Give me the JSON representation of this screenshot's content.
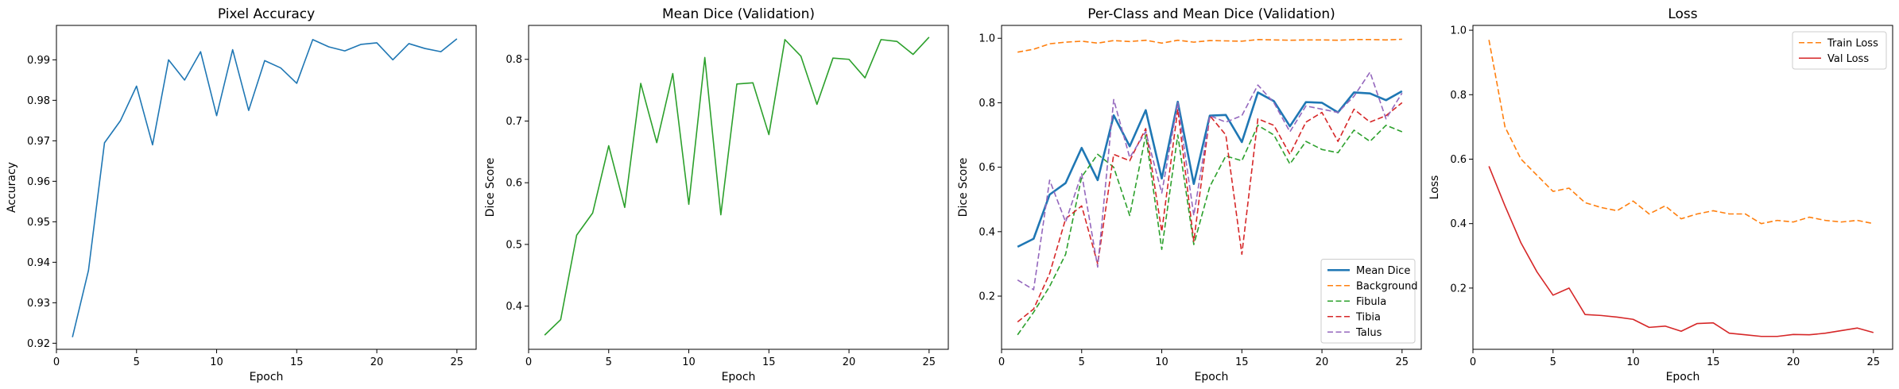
{
  "chart_data": [
    {
      "type": "line",
      "title": "Pixel Accuracy",
      "xlabel": "Epoch",
      "ylabel": "Accuracy",
      "xlim": [
        0,
        26.2
      ],
      "ylim": [
        0.9185,
        0.9985
      ],
      "xticks": [
        0,
        5,
        10,
        15,
        20,
        25
      ],
      "yticks": [
        0.92,
        0.93,
        0.94,
        0.95,
        0.96,
        0.97,
        0.98,
        0.99
      ],
      "ytick_decimals": 2,
      "x": [
        1,
        2,
        3,
        4,
        5,
        6,
        7,
        8,
        9,
        10,
        11,
        12,
        13,
        14,
        15,
        16,
        17,
        18,
        19,
        20,
        21,
        22,
        23,
        24,
        25
      ],
      "series": [
        {
          "color": "#1f77b4",
          "dash": "solid",
          "values": [
            0.9215,
            0.938,
            0.9695,
            0.975,
            0.9835,
            0.969,
            0.99,
            0.985,
            0.992,
            0.9762,
            0.9925,
            0.9775,
            0.9898,
            0.988,
            0.9842,
            0.995,
            0.9932,
            0.9922,
            0.9938,
            0.9942,
            0.99,
            0.994,
            0.9928,
            0.992,
            0.9952
          ]
        }
      ],
      "legend": null
    },
    {
      "type": "line",
      "title": "Mean Dice (Validation)",
      "xlabel": "Epoch",
      "ylabel": "Dice Score",
      "xlim": [
        0,
        26.2
      ],
      "ylim": [
        0.33,
        0.855
      ],
      "xticks": [
        0,
        5,
        10,
        15,
        20,
        25
      ],
      "yticks": [
        0.4,
        0.5,
        0.6,
        0.7,
        0.8
      ],
      "ytick_decimals": 1,
      "x": [
        1,
        2,
        3,
        4,
        5,
        6,
        7,
        8,
        9,
        10,
        11,
        12,
        13,
        14,
        15,
        16,
        17,
        18,
        19,
        20,
        21,
        22,
        23,
        24,
        25
      ],
      "series": [
        {
          "color": "#2ca02c",
          "dash": "solid",
          "values": [
            0.353,
            0.378,
            0.515,
            0.551,
            0.66,
            0.56,
            0.761,
            0.665,
            0.777,
            0.565,
            0.803,
            0.548,
            0.76,
            0.762,
            0.678,
            0.832,
            0.805,
            0.727,
            0.802,
            0.8,
            0.77,
            0.832,
            0.829,
            0.808,
            0.836
          ]
        }
      ],
      "legend": null
    },
    {
      "type": "line",
      "title": "Per-Class and Mean Dice (Validation)",
      "xlabel": "Epoch",
      "ylabel": "Dice Score",
      "xlim": [
        0,
        26.2
      ],
      "ylim": [
        0.035,
        1.04
      ],
      "xticks": [
        0,
        5,
        10,
        15,
        20,
        25
      ],
      "yticks": [
        0.2,
        0.4,
        0.6,
        0.8,
        1.0
      ],
      "ytick_decimals": 1,
      "x": [
        1,
        2,
        3,
        4,
        5,
        6,
        7,
        8,
        9,
        10,
        11,
        12,
        13,
        14,
        15,
        16,
        17,
        18,
        19,
        20,
        21,
        22,
        23,
        24,
        25
      ],
      "series": [
        {
          "name": "Mean Dice",
          "color": "#1f77b4",
          "dash": "solid",
          "width": 2.6,
          "values": [
            0.353,
            0.378,
            0.515,
            0.551,
            0.66,
            0.56,
            0.761,
            0.665,
            0.777,
            0.565,
            0.803,
            0.548,
            0.76,
            0.762,
            0.678,
            0.832,
            0.805,
            0.727,
            0.802,
            0.8,
            0.77,
            0.832,
            0.829,
            0.808,
            0.836
          ]
        },
        {
          "name": "Background",
          "color": "#ff7f0e",
          "dash": "dashed",
          "width": 1.6,
          "values": [
            0.957,
            0.966,
            0.983,
            0.988,
            0.991,
            0.985,
            0.993,
            0.99,
            0.994,
            0.985,
            0.994,
            0.988,
            0.993,
            0.992,
            0.991,
            0.996,
            0.995,
            0.994,
            0.995,
            0.995,
            0.994,
            0.996,
            0.996,
            0.995,
            0.997
          ]
        },
        {
          "name": "Fibula",
          "color": "#2ca02c",
          "dash": "dashed",
          "width": 1.6,
          "values": [
            0.08,
            0.15,
            0.23,
            0.33,
            0.57,
            0.64,
            0.6,
            0.45,
            0.7,
            0.345,
            0.7,
            0.36,
            0.54,
            0.635,
            0.62,
            0.73,
            0.7,
            0.61,
            0.68,
            0.655,
            0.645,
            0.715,
            0.68,
            0.73,
            0.71
          ]
        },
        {
          "name": "Tibia",
          "color": "#d62728",
          "dash": "dashed",
          "width": 1.6,
          "values": [
            0.12,
            0.16,
            0.27,
            0.44,
            0.48,
            0.3,
            0.64,
            0.62,
            0.72,
            0.4,
            0.78,
            0.37,
            0.76,
            0.7,
            0.33,
            0.75,
            0.73,
            0.64,
            0.74,
            0.77,
            0.68,
            0.78,
            0.74,
            0.76,
            0.8
          ]
        },
        {
          "name": "Talus",
          "color": "#9467bd",
          "dash": "dashed",
          "width": 1.6,
          "values": [
            0.25,
            0.22,
            0.56,
            0.43,
            0.58,
            0.29,
            0.81,
            0.63,
            0.71,
            0.52,
            0.8,
            0.45,
            0.76,
            0.74,
            0.76,
            0.855,
            0.8,
            0.71,
            0.79,
            0.78,
            0.77,
            0.82,
            0.895,
            0.75,
            0.83
          ]
        }
      ],
      "legend": {
        "position": "lower right",
        "entries": [
          "Mean Dice",
          "Background",
          "Fibula",
          "Tibia",
          "Talus"
        ]
      }
    },
    {
      "type": "line",
      "title": "Loss",
      "xlabel": "Epoch",
      "ylabel": "Loss",
      "xlim": [
        0,
        26.2
      ],
      "ylim": [
        0.01,
        1.015
      ],
      "xticks": [
        0,
        5,
        10,
        15,
        20,
        25
      ],
      "yticks": [
        0.2,
        0.4,
        0.6,
        0.8,
        1.0
      ],
      "ytick_decimals": 1,
      "x": [
        1,
        2,
        3,
        4,
        5,
        6,
        7,
        8,
        9,
        10,
        11,
        12,
        13,
        14,
        15,
        16,
        17,
        18,
        19,
        20,
        21,
        22,
        23,
        24,
        25
      ],
      "series": [
        {
          "name": "Train Loss",
          "color": "#ff7f0e",
          "dash": "dashed",
          "width": 1.6,
          "values": [
            0.97,
            0.7,
            0.6,
            0.55,
            0.5,
            0.51,
            0.465,
            0.45,
            0.44,
            0.47,
            0.43,
            0.455,
            0.415,
            0.43,
            0.44,
            0.43,
            0.43,
            0.4,
            0.41,
            0.405,
            0.42,
            0.41,
            0.405,
            0.41,
            0.4
          ]
        },
        {
          "name": "Val Loss",
          "color": "#d62728",
          "dash": "solid",
          "width": 1.6,
          "values": [
            0.578,
            0.455,
            0.34,
            0.25,
            0.178,
            0.2,
            0.118,
            0.115,
            0.11,
            0.103,
            0.078,
            0.082,
            0.066,
            0.09,
            0.092,
            0.06,
            0.055,
            0.05,
            0.05,
            0.056,
            0.055,
            0.06,
            0.068,
            0.076,
            0.062
          ]
        }
      ],
      "legend": {
        "position": "upper right",
        "entries": [
          "Train Loss",
          "Val Loss"
        ]
      }
    }
  ]
}
